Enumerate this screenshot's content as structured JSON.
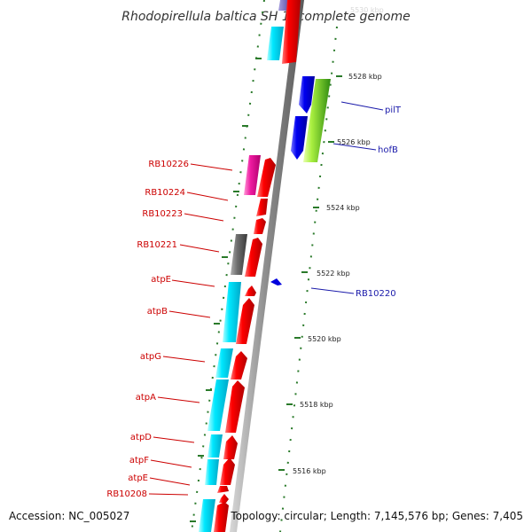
{
  "title": "Rhodopirellula baltica SH 1, complete genome",
  "footer": {
    "accession": "Accession: NC_005027",
    "topology": "Topology: circular; Length: 7,145,576 bp; Genes: 7,405"
  },
  "scale": {
    "faded_label": "5530 kbp",
    "ticks": [
      {
        "label": "5528 kbp"
      },
      {
        "label": "5526 kbp"
      },
      {
        "label": "5524 kbp"
      },
      {
        "label": "5522 kbp"
      },
      {
        "label": "5520 kbp"
      },
      {
        "label": "5518 kbp"
      },
      {
        "label": "5516 kbp"
      }
    ]
  },
  "genes_left": [
    {
      "label": "RB10226"
    },
    {
      "label": "RB10224"
    },
    {
      "label": "RB10223"
    },
    {
      "label": "RB10221"
    },
    {
      "label": "atpE"
    },
    {
      "label": "atpB"
    },
    {
      "label": "atpG"
    },
    {
      "label": "atpA"
    },
    {
      "label": "atpD"
    },
    {
      "label": "atpF"
    },
    {
      "label": "atpE"
    },
    {
      "label": "RB10208"
    }
  ],
  "genes_right": [
    {
      "label": "pilT"
    },
    {
      "label": "hofB"
    },
    {
      "label": "RB10220"
    }
  ],
  "colors": {
    "left_label": "#cc0000",
    "right_label": "#1a1aaa",
    "forward_gene": "#ee0000",
    "cog_cyan": "#00e5ff",
    "reverse_gene": "#0000ee",
    "tick": "#2a7a2a"
  }
}
